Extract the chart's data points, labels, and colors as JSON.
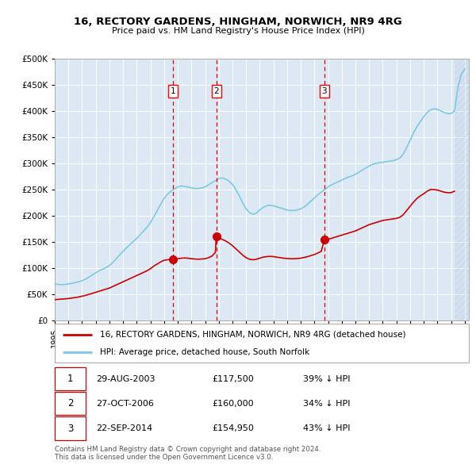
{
  "title": "16, RECTORY GARDENS, HINGHAM, NORWICH, NR9 4RG",
  "subtitle": "Price paid vs. HM Land Registry's House Price Index (HPI)",
  "background_color": "#ffffff",
  "plot_bg_color": "#dce9f5",
  "grid_color": "#ffffff",
  "hpi_color": "#7ec8e3",
  "price_color": "#cc0000",
  "ylim": [
    0,
    500000
  ],
  "yticks": [
    0,
    50000,
    100000,
    150000,
    200000,
    250000,
    300000,
    350000,
    400000,
    450000,
    500000
  ],
  "xlim_start": 1995.0,
  "xlim_end": 2025.3,
  "sales": [
    {
      "label": "1",
      "date_num": 2003.66,
      "price": 117500
    },
    {
      "label": "2",
      "date_num": 2006.82,
      "price": 160000
    },
    {
      "label": "3",
      "date_num": 2014.73,
      "price": 154950
    }
  ],
  "legend_entries": [
    "16, RECTORY GARDENS, HINGHAM, NORWICH, NR9 4RG (detached house)",
    "HPI: Average price, detached house, South Norfolk"
  ],
  "table_rows": [
    {
      "num": "1",
      "date": "29-AUG-2003",
      "price": "£117,500",
      "pct": "39% ↓ HPI"
    },
    {
      "num": "2",
      "date": "27-OCT-2006",
      "price": "£160,000",
      "pct": "34% ↓ HPI"
    },
    {
      "num": "3",
      "date": "22-SEP-2014",
      "price": "£154,950",
      "pct": "43% ↓ HPI"
    }
  ],
  "footer": "Contains HM Land Registry data © Crown copyright and database right 2024.\nThis data is licensed under the Open Government Licence v3.0.",
  "hpi_data": [
    [
      1995.0,
      70000
    ],
    [
      1995.25,
      69000
    ],
    [
      1995.5,
      68500
    ],
    [
      1995.75,
      69000
    ],
    [
      1996.0,
      70000
    ],
    [
      1996.25,
      71000
    ],
    [
      1996.5,
      72500
    ],
    [
      1996.75,
      74000
    ],
    [
      1997.0,
      76000
    ],
    [
      1997.25,
      79000
    ],
    [
      1997.5,
      83000
    ],
    [
      1997.75,
      87000
    ],
    [
      1998.0,
      91000
    ],
    [
      1998.25,
      95000
    ],
    [
      1998.5,
      98000
    ],
    [
      1998.75,
      101000
    ],
    [
      1999.0,
      105000
    ],
    [
      1999.25,
      111000
    ],
    [
      1999.5,
      118000
    ],
    [
      1999.75,
      125000
    ],
    [
      2000.0,
      132000
    ],
    [
      2000.25,
      139000
    ],
    [
      2000.5,
      145000
    ],
    [
      2000.75,
      151000
    ],
    [
      2001.0,
      157000
    ],
    [
      2001.25,
      164000
    ],
    [
      2001.5,
      171000
    ],
    [
      2001.75,
      178000
    ],
    [
      2002.0,
      187000
    ],
    [
      2002.25,
      198000
    ],
    [
      2002.5,
      210000
    ],
    [
      2002.75,
      222000
    ],
    [
      2003.0,
      233000
    ],
    [
      2003.25,
      241000
    ],
    [
      2003.5,
      247000
    ],
    [
      2003.75,
      251000
    ],
    [
      2004.0,
      255000
    ],
    [
      2004.25,
      257000
    ],
    [
      2004.5,
      256000
    ],
    [
      2004.75,
      255000
    ],
    [
      2005.0,
      253000
    ],
    [
      2005.25,
      252000
    ],
    [
      2005.5,
      252000
    ],
    [
      2005.75,
      253000
    ],
    [
      2006.0,
      255000
    ],
    [
      2006.25,
      259000
    ],
    [
      2006.5,
      263000
    ],
    [
      2006.75,
      267000
    ],
    [
      2007.0,
      271000
    ],
    [
      2007.25,
      272000
    ],
    [
      2007.5,
      270000
    ],
    [
      2007.75,
      266000
    ],
    [
      2008.0,
      260000
    ],
    [
      2008.25,
      250000
    ],
    [
      2008.5,
      238000
    ],
    [
      2008.75,
      225000
    ],
    [
      2009.0,
      213000
    ],
    [
      2009.25,
      206000
    ],
    [
      2009.5,
      203000
    ],
    [
      2009.75,
      205000
    ],
    [
      2010.0,
      211000
    ],
    [
      2010.25,
      216000
    ],
    [
      2010.5,
      219000
    ],
    [
      2010.75,
      220000
    ],
    [
      2011.0,
      219000
    ],
    [
      2011.25,
      217000
    ],
    [
      2011.5,
      215000
    ],
    [
      2011.75,
      213000
    ],
    [
      2012.0,
      211000
    ],
    [
      2012.25,
      210000
    ],
    [
      2012.5,
      210000
    ],
    [
      2012.75,
      211000
    ],
    [
      2013.0,
      213000
    ],
    [
      2013.25,
      217000
    ],
    [
      2013.5,
      222000
    ],
    [
      2013.75,
      228000
    ],
    [
      2014.0,
      234000
    ],
    [
      2014.25,
      240000
    ],
    [
      2014.5,
      245000
    ],
    [
      2014.75,
      250000
    ],
    [
      2015.0,
      255000
    ],
    [
      2015.25,
      259000
    ],
    [
      2015.5,
      262000
    ],
    [
      2015.75,
      265000
    ],
    [
      2016.0,
      268000
    ],
    [
      2016.25,
      271000
    ],
    [
      2016.5,
      274000
    ],
    [
      2016.75,
      276000
    ],
    [
      2017.0,
      279000
    ],
    [
      2017.25,
      283000
    ],
    [
      2017.5,
      287000
    ],
    [
      2017.75,
      291000
    ],
    [
      2018.0,
      295000
    ],
    [
      2018.25,
      298000
    ],
    [
      2018.5,
      300000
    ],
    [
      2018.75,
      301000
    ],
    [
      2019.0,
      302000
    ],
    [
      2019.25,
      303000
    ],
    [
      2019.5,
      304000
    ],
    [
      2019.75,
      305000
    ],
    [
      2020.0,
      307000
    ],
    [
      2020.25,
      310000
    ],
    [
      2020.5,
      318000
    ],
    [
      2020.75,
      330000
    ],
    [
      2021.0,
      344000
    ],
    [
      2021.25,
      358000
    ],
    [
      2021.5,
      370000
    ],
    [
      2021.75,
      380000
    ],
    [
      2022.0,
      389000
    ],
    [
      2022.25,
      397000
    ],
    [
      2022.5,
      402000
    ],
    [
      2022.75,
      404000
    ],
    [
      2023.0,
      403000
    ],
    [
      2023.25,
      400000
    ],
    [
      2023.5,
      397000
    ],
    [
      2023.75,
      395000
    ],
    [
      2024.0,
      395000
    ],
    [
      2024.25,
      400000
    ],
    [
      2024.5,
      445000
    ],
    [
      2024.75,
      470000
    ],
    [
      2025.0,
      480000
    ]
  ],
  "price_data": [
    [
      1995.0,
      40000
    ],
    [
      1995.25,
      40500
    ],
    [
      1995.5,
      41000
    ],
    [
      1995.75,
      41500
    ],
    [
      1996.0,
      42000
    ],
    [
      1996.25,
      43000
    ],
    [
      1996.5,
      44000
    ],
    [
      1996.75,
      45000
    ],
    [
      1997.0,
      46500
    ],
    [
      1997.25,
      48000
    ],
    [
      1997.5,
      50000
    ],
    [
      1997.75,
      52000
    ],
    [
      1998.0,
      54000
    ],
    [
      1998.25,
      56000
    ],
    [
      1998.5,
      58000
    ],
    [
      1998.75,
      60000
    ],
    [
      1999.0,
      62000
    ],
    [
      1999.25,
      65000
    ],
    [
      1999.5,
      68000
    ],
    [
      1999.75,
      71000
    ],
    [
      2000.0,
      74000
    ],
    [
      2000.25,
      77000
    ],
    [
      2000.5,
      80000
    ],
    [
      2000.75,
      83000
    ],
    [
      2001.0,
      86000
    ],
    [
      2001.25,
      89000
    ],
    [
      2001.5,
      92000
    ],
    [
      2001.75,
      95000
    ],
    [
      2002.0,
      99000
    ],
    [
      2002.25,
      104000
    ],
    [
      2002.5,
      108000
    ],
    [
      2002.75,
      112000
    ],
    [
      2003.0,
      115000
    ],
    [
      2003.5,
      117000
    ],
    [
      2003.66,
      117500
    ],
    [
      2003.75,
      117000
    ],
    [
      2004.0,
      118000
    ],
    [
      2004.25,
      119000
    ],
    [
      2004.5,
      119500
    ],
    [
      2004.75,
      119000
    ],
    [
      2005.0,
      118000
    ],
    [
      2005.25,
      117500
    ],
    [
      2005.5,
      117000
    ],
    [
      2005.75,
      117500
    ],
    [
      2006.0,
      118000
    ],
    [
      2006.25,
      120000
    ],
    [
      2006.5,
      123000
    ],
    [
      2006.75,
      130000
    ],
    [
      2006.82,
      160000
    ],
    [
      2007.0,
      158000
    ],
    [
      2007.25,
      155000
    ],
    [
      2007.5,
      152000
    ],
    [
      2007.75,
      148000
    ],
    [
      2008.0,
      143000
    ],
    [
      2008.25,
      137000
    ],
    [
      2008.5,
      131000
    ],
    [
      2008.75,
      125000
    ],
    [
      2009.0,
      120000
    ],
    [
      2009.25,
      117000
    ],
    [
      2009.5,
      116000
    ],
    [
      2009.75,
      117000
    ],
    [
      2010.0,
      119000
    ],
    [
      2010.25,
      121000
    ],
    [
      2010.5,
      122000
    ],
    [
      2010.75,
      122500
    ],
    [
      2011.0,
      122000
    ],
    [
      2011.25,
      121000
    ],
    [
      2011.5,
      120000
    ],
    [
      2011.75,
      119000
    ],
    [
      2012.0,
      118500
    ],
    [
      2012.25,
      118000
    ],
    [
      2012.5,
      118000
    ],
    [
      2012.75,
      118500
    ],
    [
      2013.0,
      119000
    ],
    [
      2013.25,
      120500
    ],
    [
      2013.5,
      122000
    ],
    [
      2013.75,
      124000
    ],
    [
      2014.0,
      126000
    ],
    [
      2014.25,
      129000
    ],
    [
      2014.5,
      132000
    ],
    [
      2014.73,
      154950
    ],
    [
      2014.75,
      154000
    ],
    [
      2015.0,
      155000
    ],
    [
      2015.25,
      157000
    ],
    [
      2015.5,
      159000
    ],
    [
      2015.75,
      161000
    ],
    [
      2016.0,
      163000
    ],
    [
      2016.25,
      165000
    ],
    [
      2016.5,
      167000
    ],
    [
      2016.75,
      169000
    ],
    [
      2017.0,
      171000
    ],
    [
      2017.25,
      174000
    ],
    [
      2017.5,
      177000
    ],
    [
      2017.75,
      180000
    ],
    [
      2018.0,
      183000
    ],
    [
      2018.25,
      185000
    ],
    [
      2018.5,
      187000
    ],
    [
      2018.75,
      189000
    ],
    [
      2019.0,
      191000
    ],
    [
      2019.25,
      192000
    ],
    [
      2019.5,
      193000
    ],
    [
      2019.75,
      194000
    ],
    [
      2020.0,
      195000
    ],
    [
      2020.25,
      197000
    ],
    [
      2020.5,
      202000
    ],
    [
      2020.75,
      210000
    ],
    [
      2021.0,
      218000
    ],
    [
      2021.25,
      226000
    ],
    [
      2021.5,
      233000
    ],
    [
      2021.75,
      238000
    ],
    [
      2022.0,
      242000
    ],
    [
      2022.25,
      247000
    ],
    [
      2022.5,
      250000
    ],
    [
      2022.75,
      250000
    ],
    [
      2023.0,
      249000
    ],
    [
      2023.25,
      247000
    ],
    [
      2023.5,
      245000
    ],
    [
      2023.75,
      244000
    ],
    [
      2024.0,
      244000
    ],
    [
      2024.25,
      247000
    ]
  ]
}
